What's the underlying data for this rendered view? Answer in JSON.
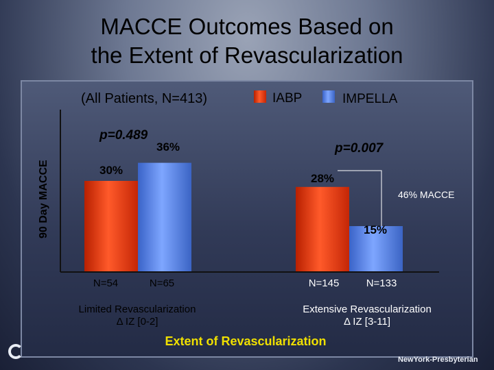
{
  "title_line1": "MACCE Outcomes Based on",
  "title_line2": "the Extent of Revascularization",
  "colors": {
    "iabp": "#e03515",
    "impella": "#4f7fe0",
    "text_dark": "#000000",
    "text_light": "#ffffff",
    "xlabel": "#f0e000"
  },
  "chart_data": {
    "type": "bar",
    "subtitle": "(All Patients, N=413)",
    "ylabel": "90 Day MACCE",
    "xlabel": "Extent of Revascularization",
    "ylim": [
      0,
      40
    ],
    "legend_position": "top-right",
    "series": [
      {
        "name": "IABP",
        "values": [
          30,
          28
        ],
        "labels": [
          "30%",
          "28%"
        ],
        "n_labels": [
          "N=54",
          "N=145"
        ]
      },
      {
        "name": "IMPELLA",
        "values": [
          36,
          15
        ],
        "labels": [
          "36%",
          "15%"
        ],
        "n_labels": [
          "N=65",
          "N=133"
        ]
      }
    ],
    "categories": [
      {
        "label": "Limited Revascularization",
        "sublabel": "Δ IZ [0-2]",
        "p_value": "p=0.489"
      },
      {
        "label": "Extensive Revascularization",
        "sublabel": "Δ IZ [3-11]",
        "p_value": "p=0.007"
      }
    ],
    "annotations": [
      {
        "text": "46% MACCE",
        "between": "Extensive Revascularization"
      }
    ]
  },
  "footer": {
    "brand": "NewYork-Presbyterian"
  }
}
